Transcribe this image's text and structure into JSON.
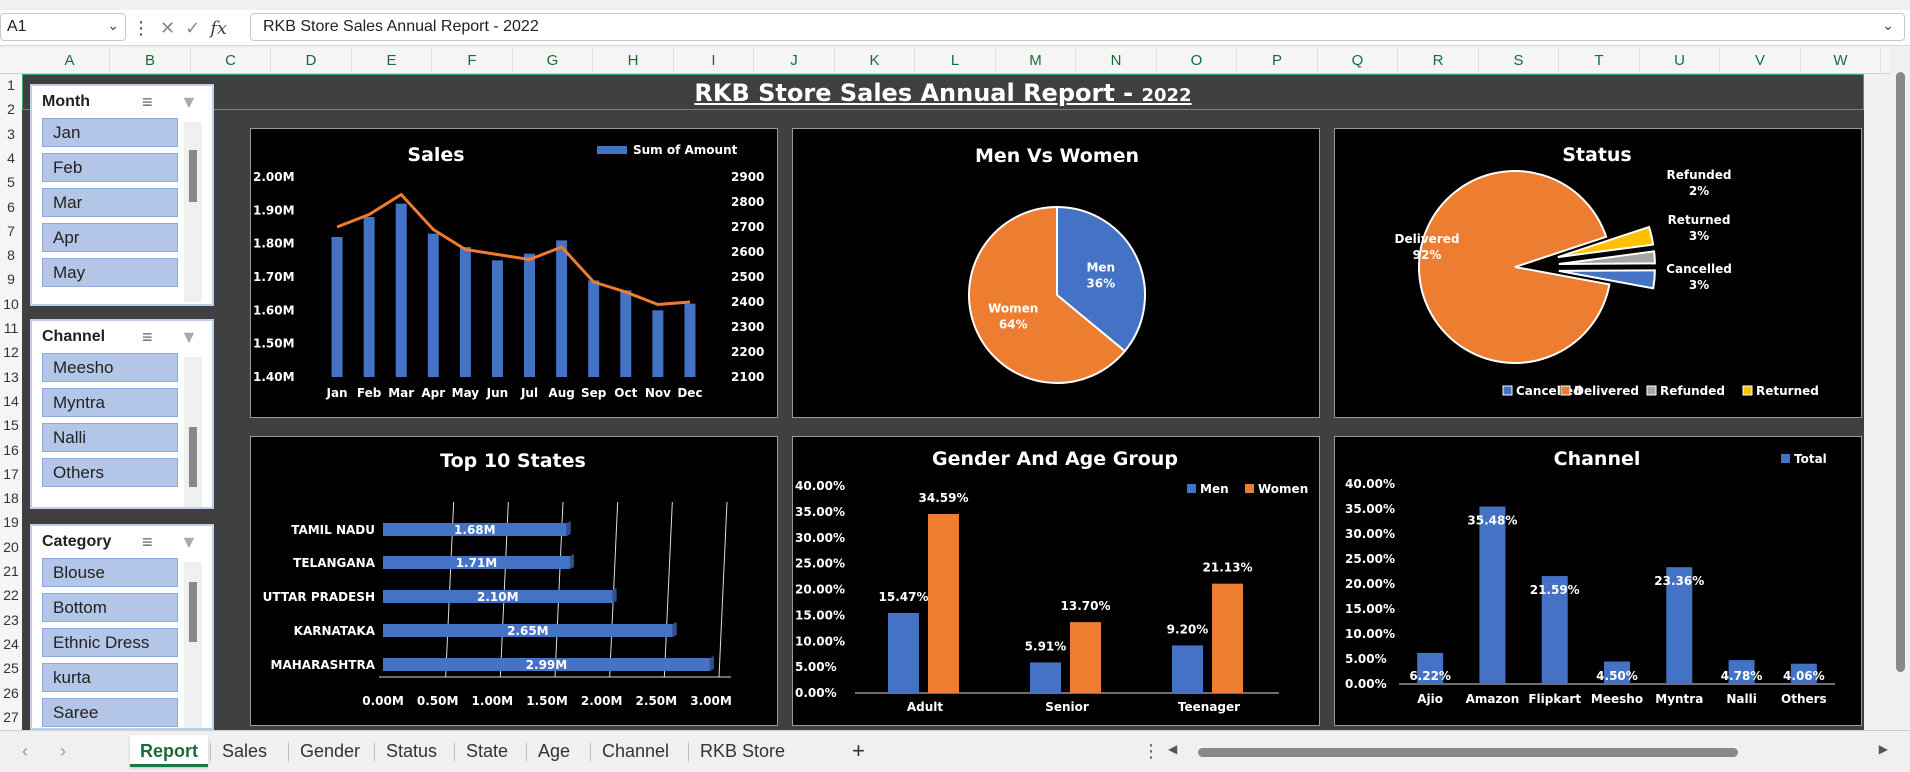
{
  "formula_bar": {
    "cell_ref": "A1",
    "formula": "RKB Store Sales Annual Report - 2022",
    "fx_label": "fx"
  },
  "columns": [
    "A",
    "B",
    "C",
    "D",
    "E",
    "F",
    "G",
    "H",
    "I",
    "J",
    "K",
    "L",
    "M",
    "N",
    "O",
    "P",
    "Q",
    "R",
    "S",
    "T",
    "U",
    "V",
    "W"
  ],
  "rows": [
    "1",
    "2",
    "3",
    "4",
    "5",
    "6",
    "7",
    "8",
    "9",
    "10",
    "11",
    "12",
    "13",
    "14",
    "15",
    "16",
    "17",
    "18",
    "19",
    "20",
    "21",
    "22",
    "23",
    "24",
    "25",
    "26",
    "27"
  ],
  "report": {
    "title": "RKB Store Sales Annual Report - ",
    "year": "2022"
  },
  "slicers": {
    "month": {
      "title": "Month",
      "items": [
        "Jan",
        "Feb",
        "Mar",
        "Apr",
        "May"
      ]
    },
    "channel": {
      "title": "Channel",
      "items": [
        "Meesho",
        "Myntra",
        "Nalli",
        "Others"
      ]
    },
    "category": {
      "title": "Category",
      "items": [
        "Blouse",
        "Bottom",
        "Ethnic Dress",
        "kurta",
        "Saree"
      ]
    }
  },
  "tabs": {
    "sheets": [
      "Report",
      "Sales",
      "Gender",
      "Status",
      "State",
      "Age",
      "Channel",
      "RKB Store"
    ],
    "active": "Report",
    "add_label": "+"
  },
  "colors": {
    "blue": "#4472c4",
    "orange": "#ed7d31",
    "gray": "#a5a5a5",
    "yellow": "#ffc000",
    "panel_bg": "#000000",
    "dashboard_bg": "#404040"
  },
  "chart_data": [
    {
      "id": "sales",
      "type": "bar",
      "title": "Sales",
      "legend": "Sum of Amount",
      "categories": [
        "Jan",
        "Feb",
        "Mar",
        "Apr",
        "May",
        "Jun",
        "Jul",
        "Aug",
        "Sep",
        "Oct",
        "Nov",
        "Dec"
      ],
      "series": [
        {
          "name": "Sum of Amount",
          "values": [
            1.82,
            1.88,
            1.92,
            1.83,
            1.79,
            1.75,
            1.77,
            1.81,
            1.69,
            1.66,
            1.6,
            1.62
          ]
        },
        {
          "values": [
            2700,
            2750,
            2830,
            2690,
            2610,
            2590,
            2570,
            2620,
            2480,
            2440,
            2390,
            2400
          ],
          "type": "line"
        }
      ],
      "y_ticks": [
        "1.40M",
        "1.50M",
        "1.60M",
        "1.70M",
        "1.80M",
        "1.90M",
        "2.00M"
      ],
      "ylim": [
        1.4,
        2.0
      ],
      "y2_ticks": [
        "2100",
        "2200",
        "2300",
        "2400",
        "2500",
        "2600",
        "2700",
        "2800",
        "2900"
      ],
      "y2lim": [
        2100,
        2900
      ]
    },
    {
      "id": "gender",
      "type": "pie",
      "title": "Men Vs Women",
      "labels": [
        "Men",
        "Women"
      ],
      "values": [
        36,
        64
      ],
      "pct_labels": [
        "36%",
        "64%"
      ]
    },
    {
      "id": "status",
      "type": "pie",
      "title": "Status",
      "labels": [
        "Cancelled",
        "Delivered",
        "Refunded",
        "Returned"
      ],
      "values": [
        3,
        92,
        2,
        3
      ],
      "pct_labels": [
        "3%",
        "92%",
        "2%",
        "3%"
      ],
      "legend": [
        "Cancelled",
        "Delivered",
        "Refunded",
        "Returned"
      ]
    },
    {
      "id": "states",
      "type": "bar",
      "title": "Top 10 States",
      "orientation": "horizontal",
      "categories": [
        "TAMIL NADU",
        "TELANGANA",
        "UTTAR PRADESH",
        "KARNATAKA",
        "MAHARASHTRA"
      ],
      "values": [
        1.68,
        1.71,
        2.1,
        2.65,
        2.99
      ],
      "value_labels": [
        "1.68M",
        "1.71M",
        "2.10M",
        "2.65M",
        "2.99M"
      ],
      "x_ticks": [
        "0.00M",
        "0.50M",
        "1.00M",
        "1.50M",
        "2.00M",
        "2.50M",
        "3.00M"
      ],
      "xlim": [
        0,
        3
      ]
    },
    {
      "id": "agegroup",
      "type": "bar",
      "title": "Gender And Age Group",
      "categories": [
        "Adult",
        "Senior",
        "Teenager"
      ],
      "series": [
        {
          "name": "Men",
          "values": [
            15.47,
            5.91,
            9.2
          ],
          "labels": [
            "15.47%",
            "5.91%",
            "9.20%"
          ]
        },
        {
          "name": "Women",
          "values": [
            34.59,
            13.7,
            21.13
          ],
          "labels": [
            "34.59%",
            "13.70%",
            "21.13%"
          ]
        }
      ],
      "y_ticks": [
        "0.00%",
        "5.00%",
        "10.00%",
        "15.00%",
        "20.00%",
        "25.00%",
        "30.00%",
        "35.00%",
        "40.00%"
      ],
      "ylim": [
        0,
        40
      ]
    },
    {
      "id": "channel",
      "type": "bar",
      "title": "Channel",
      "legend": "Total",
      "categories": [
        "Ajio",
        "Amazon",
        "Flipkart",
        "Meesho",
        "Myntra",
        "Nalli",
        "Others"
      ],
      "values": [
        6.22,
        35.48,
        21.59,
        4.5,
        23.36,
        4.78,
        4.06
      ],
      "value_labels": [
        "6.22%",
        "35.48%",
        "21.59%",
        "4.50%",
        "23.36%",
        "4.78%",
        "4.06%"
      ],
      "y_ticks": [
        "0.00%",
        "5.00%",
        "10.00%",
        "15.00%",
        "20.00%",
        "25.00%",
        "30.00%",
        "35.00%",
        "40.00%"
      ],
      "ylim": [
        0,
        40
      ]
    }
  ]
}
